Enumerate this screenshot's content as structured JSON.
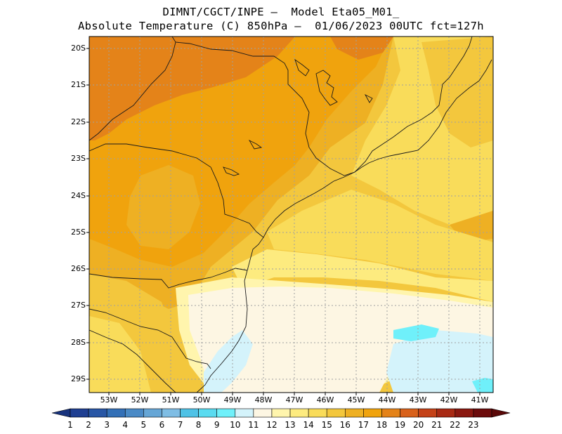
{
  "header": {
    "line1": "DIMNT/CGCT/INPE –  Model Eta05_M01_",
    "line2": "Absolute Temperature (C) 850hPa –  01/06/2023 00UTC fct=127h"
  },
  "map": {
    "lat_labels": [
      "20S",
      "21S",
      "22S",
      "23S",
      "24S",
      "25S",
      "26S",
      "27S",
      "28S",
      "29S"
    ],
    "lon_labels": [
      "53W",
      "52W",
      "51W",
      "50W",
      "49W",
      "48W",
      "47W",
      "46W",
      "45W",
      "44W",
      "43W",
      "42W",
      "41W"
    ],
    "lat_range": [
      -29.4,
      -19.8
    ],
    "lon_range": [
      -53.8,
      -40.6
    ],
    "grid": true
  },
  "colorbar": {
    "labels": [
      "1",
      "2",
      "3",
      "4",
      "5",
      "6",
      "7",
      "8",
      "9",
      "10",
      "11",
      "12",
      "13",
      "14",
      "15",
      "16",
      "17",
      "18",
      "19",
      "20",
      "21",
      "22",
      "23"
    ],
    "colors": [
      "#1f3f92",
      "#2856a5",
      "#3370b7",
      "#4a8ac6",
      "#66a6d6",
      "#7fbde4",
      "#4fc2e6",
      "#5adbf0",
      "#6ff0fa",
      "#d4f3fb",
      "#fdf6e3",
      "#fff5ad",
      "#fdeb7f",
      "#f9dc5a",
      "#f3c73d",
      "#eeb023",
      "#f0a30d",
      "#e48319",
      "#d8611b",
      "#c44218",
      "#a82a14",
      "#8a1810",
      "#6c0c0c"
    ]
  }
}
